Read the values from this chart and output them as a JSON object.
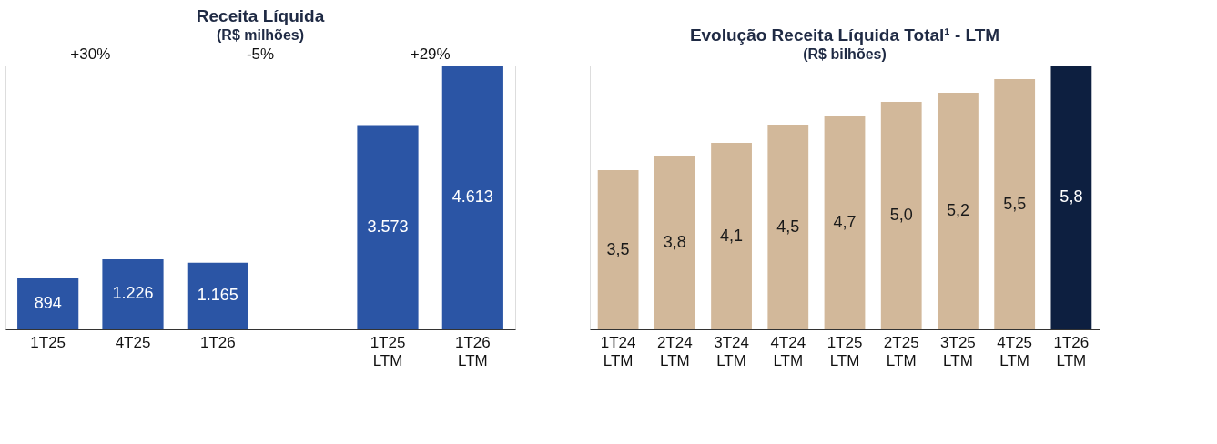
{
  "chart_data": [
    {
      "type": "bar",
      "title": "Receita Líquida",
      "subtitle": "(R$ milhões)",
      "categories": [
        "1T25",
        "4T25",
        "1T26",
        null,
        "1T25 LTM",
        "1T26 LTM"
      ],
      "values": [
        894,
        1226,
        1165,
        null,
        3573,
        4613
      ],
      "value_labels": [
        "894",
        "1.226",
        "1.165",
        null,
        "3.573",
        "4.613"
      ],
      "color": "#2b55a5",
      "annotations": [
        "+30%",
        "-5%",
        "+29%"
      ]
    },
    {
      "type": "bar",
      "title": "Evolução Receita Líquida Total¹ - LTM",
      "subtitle": "(R$ bilhões)",
      "categories": [
        "1T24 LTM",
        "2T24 LTM",
        "3T24 LTM",
        "4T24 LTM",
        "1T25 LTM",
        "2T25 LTM",
        "3T25 LTM",
        "4T25 LTM",
        "1T26 LTM"
      ],
      "values": [
        3.5,
        3.8,
        4.1,
        4.5,
        4.7,
        5.0,
        5.2,
        5.5,
        5.8
      ],
      "value_labels": [
        "3,5",
        "3,8",
        "4,1",
        "4,5",
        "4,7",
        "5,0",
        "5,2",
        "5,5",
        "5,8"
      ],
      "colors": [
        "#d2b89a",
        "#d2b89a",
        "#d2b89a",
        "#d2b89a",
        "#d2b89a",
        "#d2b89a",
        "#d2b89a",
        "#d2b89a",
        "#0d1f40"
      ]
    }
  ]
}
